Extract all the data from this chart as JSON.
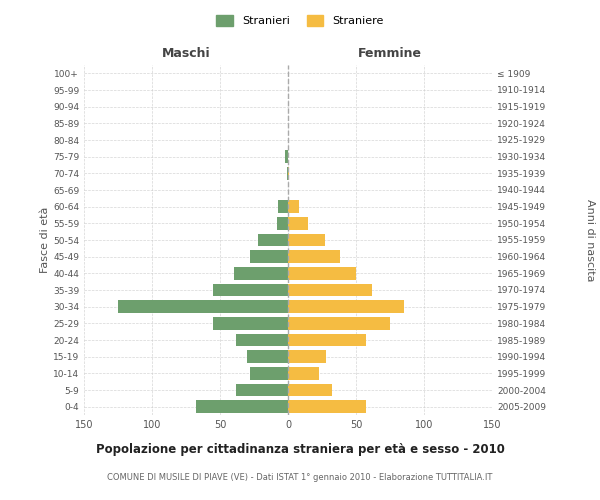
{
  "age_groups": [
    "0-4",
    "5-9",
    "10-14",
    "15-19",
    "20-24",
    "25-29",
    "30-34",
    "35-39",
    "40-44",
    "45-49",
    "50-54",
    "55-59",
    "60-64",
    "65-69",
    "70-74",
    "75-79",
    "80-84",
    "85-89",
    "90-94",
    "95-99",
    "100+"
  ],
  "birth_years": [
    "2005-2009",
    "2000-2004",
    "1995-1999",
    "1990-1994",
    "1985-1989",
    "1980-1984",
    "1975-1979",
    "1970-1974",
    "1965-1969",
    "1960-1964",
    "1955-1959",
    "1950-1954",
    "1945-1949",
    "1940-1944",
    "1935-1939",
    "1930-1934",
    "1925-1929",
    "1920-1924",
    "1915-1919",
    "1910-1914",
    "≤ 1909"
  ],
  "males": [
    68,
    38,
    28,
    30,
    38,
    55,
    125,
    55,
    40,
    28,
    22,
    8,
    7,
    0,
    1,
    2,
    0,
    0,
    0,
    0,
    0
  ],
  "females": [
    57,
    32,
    23,
    28,
    57,
    75,
    85,
    62,
    50,
    38,
    27,
    15,
    8,
    0,
    1,
    0,
    0,
    0,
    0,
    0,
    0
  ],
  "male_color": "#6d9f6d",
  "female_color": "#f5bc42",
  "background_color": "#ffffff",
  "grid_color": "#cccccc",
  "title": "Popolazione per cittadinanza straniera per età e sesso - 2010",
  "subtitle": "COMUNE DI MUSILE DI PIAVE (VE) - Dati ISTAT 1° gennaio 2010 - Elaborazione TUTTITALIA.IT",
  "xlabel_left": "Maschi",
  "xlabel_right": "Femmine",
  "ylabel_left": "Fasce di età",
  "ylabel_right": "Anni di nascita",
  "legend_male": "Stranieri",
  "legend_female": "Straniere",
  "xlim": 150
}
